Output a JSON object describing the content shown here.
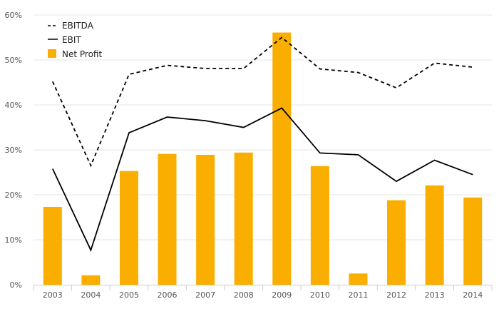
{
  "chart_data": {
    "type": "bar",
    "categories": [
      "2003",
      "2004",
      "2005",
      "2006",
      "2007",
      "2008",
      "2009",
      "2010",
      "2011",
      "2012",
      "2013",
      "2014"
    ],
    "ylim": [
      0,
      60
    ],
    "yticks": [
      0,
      10,
      20,
      30,
      40,
      50,
      60
    ],
    "ytick_labels": [
      "0%",
      "10%",
      "20%",
      "30%",
      "40%",
      "50%",
      "60%"
    ],
    "grid": true,
    "legend": "top-left",
    "series": [
      {
        "name": "EBITDA",
        "type": "line",
        "style": "dashed",
        "color": "#000000",
        "values": [
          45.2,
          26.5,
          46.8,
          48.8,
          48.1,
          48.1,
          55.0,
          48.0,
          47.2,
          43.8,
          49.3,
          48.4
        ]
      },
      {
        "name": "EBIT",
        "type": "line",
        "style": "solid",
        "color": "#000000",
        "values": [
          25.8,
          7.7,
          33.8,
          37.3,
          36.5,
          35.0,
          39.3,
          29.3,
          28.9,
          23.0,
          27.7,
          24.5
        ]
      },
      {
        "name": "Net Profit",
        "type": "bar",
        "color": "#F9AE00",
        "values": [
          17.3,
          2.1,
          25.3,
          29.1,
          28.9,
          29.4,
          56.1,
          26.4,
          2.5,
          18.8,
          22.1,
          19.4
        ]
      }
    ]
  }
}
